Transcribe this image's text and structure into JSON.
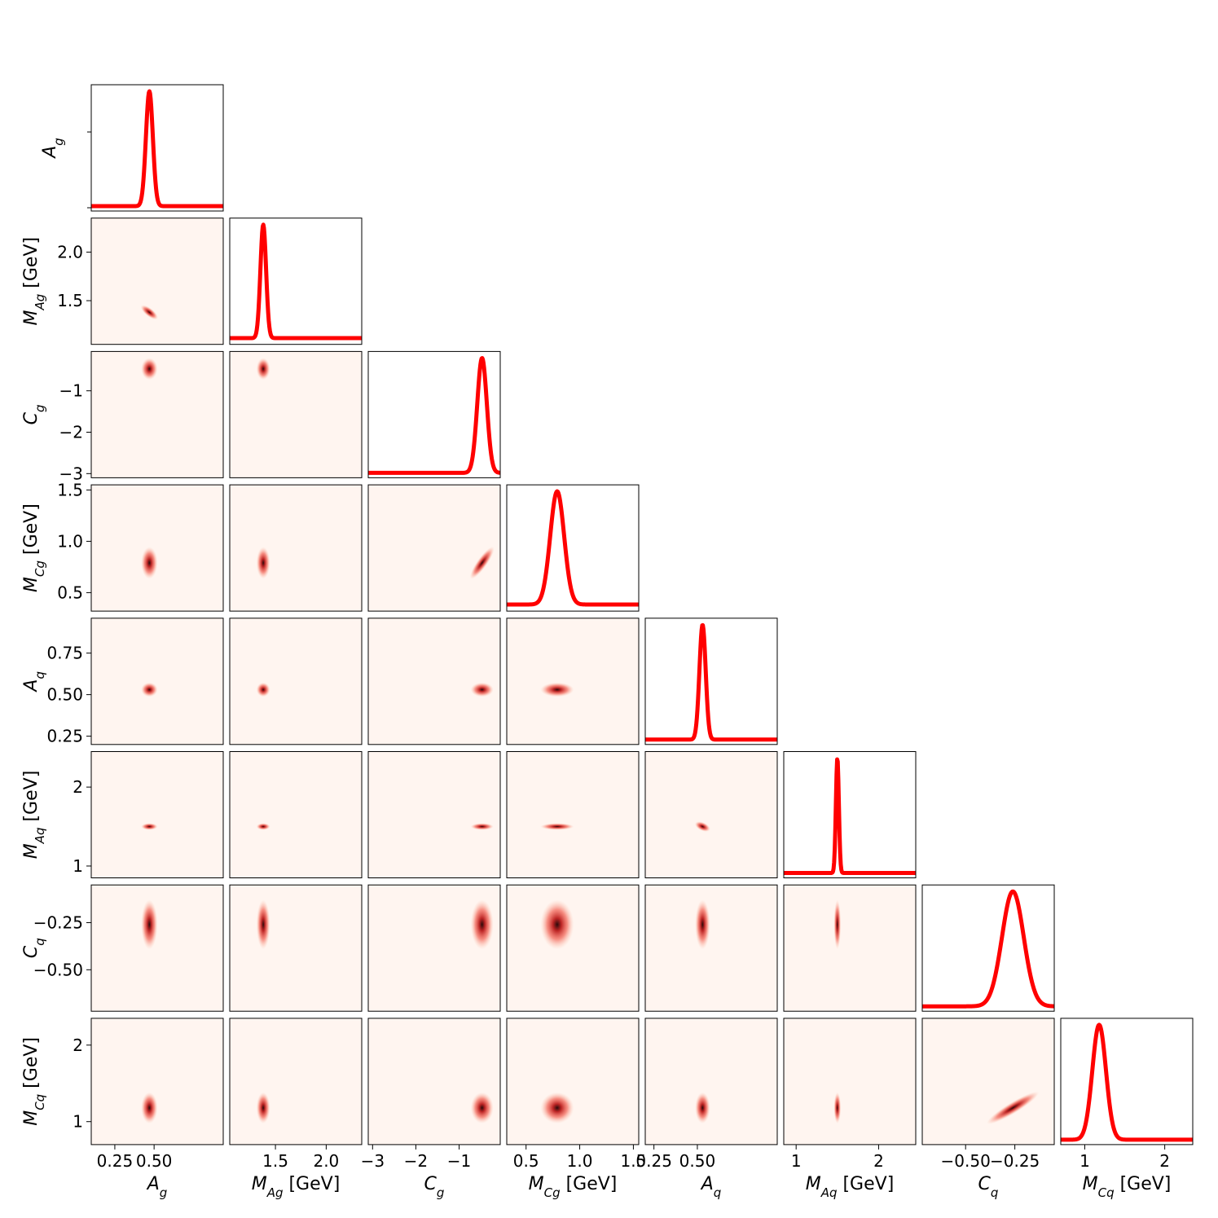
{
  "chart_data": {
    "type": "corner",
    "parameters": [
      {
        "symbol": "A",
        "sub": "g",
        "unit": "",
        "range": [
          0.1,
          0.94
        ],
        "ticks": [
          0.25,
          0.5
        ],
        "tick_labels": [
          "0.25",
          "0.50"
        ],
        "mean": 0.47,
        "sigma": 0.022,
        "baseline": 0.0
      },
      {
        "symbol": "M",
        "sub": "Ag",
        "unit": "[GeV]",
        "range": [
          1.05,
          2.35
        ],
        "ticks": [
          1.5,
          2.0
        ],
        "tick_labels": [
          "1.5",
          "2.0"
        ],
        "mean": 1.38,
        "sigma": 0.028,
        "baseline": 0.012
      },
      {
        "symbol": "C",
        "sub": "g",
        "unit": "",
        "range": [
          -3.1,
          -0.05
        ],
        "ticks": [
          -3,
          -2,
          -1
        ],
        "tick_labels": [
          "−3",
          "−2",
          "−1"
        ],
        "mean": -0.47,
        "sigma": 0.11,
        "baseline": 0.0
      },
      {
        "symbol": "M",
        "sub": "Cg",
        "unit": "[GeV]",
        "range": [
          0.32,
          1.55
        ],
        "ticks": [
          0.5,
          1.0,
          1.5
        ],
        "tick_labels": [
          "0.5",
          "1.0",
          "1.5"
        ],
        "mean": 0.79,
        "sigma": 0.065,
        "baseline": 0.015
      },
      {
        "symbol": "A",
        "sub": "q",
        "unit": "",
        "range": [
          0.2,
          0.96
        ],
        "ticks": [
          0.25,
          0.5
        ],
        "tick_labels": [
          "0.25",
          "0.50"
        ],
        "mean": 0.53,
        "sigma": 0.018,
        "baseline": 0.0
      },
      {
        "symbol": "M",
        "sub": "Aq",
        "unit": "[GeV]",
        "range": [
          0.85,
          2.45
        ],
        "ticks": [
          1,
          2
        ],
        "tick_labels": [
          "1",
          "2"
        ],
        "mean": 1.5,
        "sigma": 0.018,
        "baseline": 0.0
      },
      {
        "symbol": "C",
        "sub": "q",
        "unit": "",
        "range": [
          -0.72,
          -0.05
        ],
        "ticks": [
          -0.5,
          -0.25
        ],
        "tick_labels": [
          "−0.50",
          "−0.25"
        ],
        "mean": -0.26,
        "sigma": 0.055,
        "baseline": 0.0
      },
      {
        "symbol": "M",
        "sub": "Cq",
        "unit": "[GeV]",
        "range": [
          0.7,
          2.35
        ],
        "ticks": [
          1,
          2
        ],
        "tick_labels": [
          "1",
          "2"
        ],
        "mean": 1.18,
        "sigma": 0.085,
        "baseline": 0.0
      }
    ],
    "y_tick_overrides": {
      "4": {
        "ticks": [
          0.25,
          0.5,
          0.75
        ],
        "tick_labels": [
          "0.25",
          "0.50",
          "0.75"
        ]
      }
    },
    "correlations": {
      "1-0": -0.75,
      "3-2": 0.9,
      "5-4": -0.5,
      "7-6": 0.95
    },
    "colors": {
      "line": "#ff0000",
      "density_bg": "#fff5f0",
      "density_peak": "#2a0a0a",
      "frame": "#000000"
    }
  }
}
